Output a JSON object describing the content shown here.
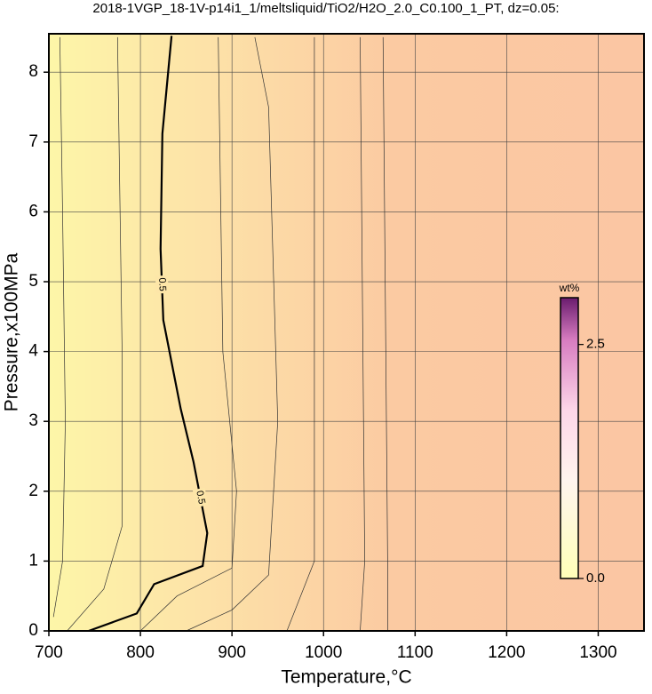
{
  "chart_data": {
    "type": "contour",
    "title": "2018-1VGP_18-1V-p14i1_1/meltsliquid/TiO2/H2O_2.0_C0.100_1_PT, dz=0.05:",
    "x_label": "Temperature,°C",
    "y_label": "Pressure,x100MPa",
    "xlim": [
      700,
      1350
    ],
    "ylim": [
      0,
      8.55
    ],
    "xticks": [
      700,
      800,
      900,
      1000,
      1100,
      1200,
      1300
    ],
    "yticks": [
      0,
      1,
      2,
      3,
      4,
      5,
      6,
      7,
      8
    ],
    "grid": true,
    "contours": [
      {
        "level": 0.5,
        "color": "#000000",
        "x": [
          743.5,
          796,
          815,
          868,
          873,
          858,
          844,
          825,
          822,
          824,
          834
        ],
        "values": [
          0,
          0.25,
          0.67,
          0.93,
          1.4,
          2.42,
          3.18,
          4.45,
          5.47,
          7.12,
          8.52
        ]
      },
      {
        "color": "#333333",
        "x": [
          705,
          715,
          718,
          715,
          712
        ],
        "values": [
          0.2,
          1,
          3,
          6,
          8.5
        ]
      },
      {
        "color": "#333333",
        "x": [
          720,
          760,
          780,
          780,
          775
        ],
        "values": [
          0,
          0.6,
          1.5,
          4,
          8.5
        ]
      },
      {
        "color": "#333333",
        "x": [
          800,
          840,
          900,
          905,
          890,
          885
        ],
        "values": [
          0,
          0.5,
          0.9,
          2,
          4,
          8.5
        ]
      },
      {
        "color": "#333333",
        "x": [
          850,
          900,
          940,
          950,
          940,
          925
        ],
        "values": [
          0,
          0.3,
          0.8,
          3,
          7.5,
          8.5
        ]
      },
      {
        "color": "#333333",
        "x": [
          960,
          990,
          990
        ],
        "values": [
          0,
          1,
          8.5
        ]
      },
      {
        "color": "#333333",
        "x": [
          1040,
          1045,
          1040
        ],
        "values": [
          0,
          1,
          8.5
        ]
      },
      {
        "color": "#333333",
        "x": [
          1070,
          1070,
          1065
        ],
        "values": [
          0,
          1,
          8.5
        ]
      }
    ],
    "colorbar": {
      "title": "wt%",
      "lim": [
        0,
        3.0
      ],
      "ticks": [
        {
          "value": 0,
          "label": "0.0"
        },
        {
          "value": 2.5,
          "label": "2.5"
        }
      ]
    }
  }
}
